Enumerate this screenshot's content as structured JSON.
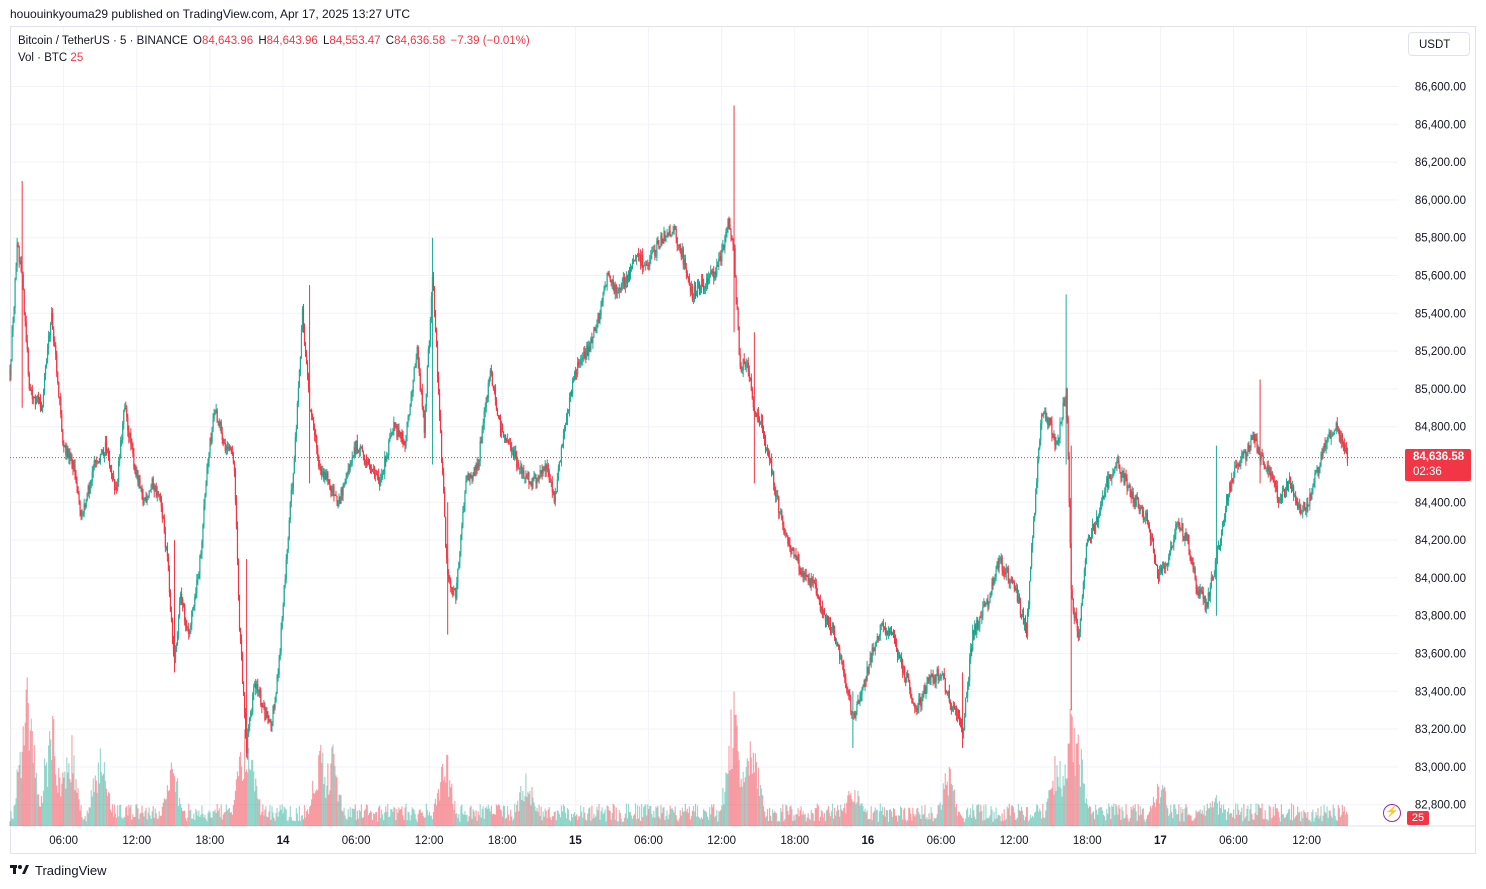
{
  "header": {
    "published_line": "hououinkyouma29 published on TradingView.com, Apr 17, 2025 13:27 UTC"
  },
  "legend": {
    "symbol": "Bitcoin / TetherUS · 5 · BINANCE",
    "open_label": "O",
    "open_value": "84,643.96",
    "high_label": "H",
    "high_value": "84,643.96",
    "low_label": "L",
    "low_value": "84,553.47",
    "close_label": "C",
    "close_value": "84,636.58",
    "change": "−7.39 (−0.01%)",
    "volume_label": "Vol · BTC",
    "volume_value": "25"
  },
  "toolbar": {
    "currency": "USDT"
  },
  "price_tag": {
    "price": "84,636.58",
    "countdown": "02:36"
  },
  "volume_tag": "25",
  "footer": {
    "brand": "TradingView"
  },
  "colors": {
    "up": "#22ab94",
    "down": "#f23645",
    "grid": "#f0f3fa",
    "last_price_line": "#f23645"
  },
  "icons": {
    "logo": "tradingview-logo-icon",
    "alert": "lightning-icon"
  },
  "chart_data": {
    "type": "candlestick",
    "title": "Bitcoin / TetherUS · 5 · BINANCE",
    "xlabel": "",
    "ylabel": "",
    "y_ticks": [
      "86,600.00",
      "86,400.00",
      "86,200.00",
      "86,000.00",
      "85,800.00",
      "85,600.00",
      "85,400.00",
      "85,200.00",
      "85,000.00",
      "84,800.00",
      "84,400.00",
      "84,200.00",
      "84,000.00",
      "83,800.00",
      "83,600.00",
      "83,400.00",
      "83,200.00",
      "83,000.00",
      "82,800.00"
    ],
    "y_tick_values": [
      86600,
      86400,
      86200,
      86000,
      85800,
      85600,
      85400,
      85200,
      85000,
      84800,
      84400,
      84200,
      84000,
      83800,
      83600,
      83400,
      83200,
      83000,
      82800
    ],
    "x_ticks": [
      "06:00",
      "12:00",
      "18:00",
      "14",
      "06:00",
      "12:00",
      "18:00",
      "15",
      "06:00",
      "12:00",
      "18:00",
      "16",
      "06:00",
      "12:00",
      "18:00",
      "17",
      "06:00",
      "12:00"
    ],
    "x_tick_hours": [
      6,
      12,
      18,
      24,
      30,
      36,
      42,
      48,
      54,
      60,
      66,
      72,
      78,
      84,
      90,
      96,
      102,
      108
    ],
    "last_price": 84636.58,
    "ylim": [
      82700,
      86720
    ],
    "xlim_hours": [
      1.6,
      115.5
    ],
    "price_path": [
      [
        1.6,
        85100
      ],
      [
        2.2,
        85750
      ],
      [
        2.6,
        85600
      ],
      [
        3.2,
        85000
      ],
      [
        4.2,
        84900
      ],
      [
        5.0,
        85400
      ],
      [
        6.0,
        84700
      ],
      [
        6.8,
        84600
      ],
      [
        7.5,
        84300
      ],
      [
        8.5,
        84600
      ],
      [
        9.5,
        84700
      ],
      [
        10.3,
        84450
      ],
      [
        11.0,
        84900
      ],
      [
        11.8,
        84600
      ],
      [
        12.5,
        84400
      ],
      [
        13.3,
        84500
      ],
      [
        14.0,
        84400
      ],
      [
        14.5,
        84100
      ],
      [
        15.1,
        83550
      ],
      [
        15.6,
        83900
      ],
      [
        16.3,
        83700
      ],
      [
        17.2,
        84100
      ],
      [
        17.8,
        84600
      ],
      [
        18.4,
        84900
      ],
      [
        19.3,
        84700
      ],
      [
        20.0,
        84600
      ],
      [
        20.4,
        83800
      ],
      [
        21.0,
        83100
      ],
      [
        21.7,
        83450
      ],
      [
        22.4,
        83300
      ],
      [
        23.0,
        83200
      ],
      [
        23.6,
        83500
      ],
      [
        24.4,
        84200
      ],
      [
        25.0,
        84700
      ],
      [
        25.6,
        85400
      ],
      [
        26.2,
        84900
      ],
      [
        27.0,
        84600
      ],
      [
        27.8,
        84500
      ],
      [
        28.6,
        84400
      ],
      [
        29.3,
        84550
      ],
      [
        30.0,
        84700
      ],
      [
        31.0,
        84600
      ],
      [
        32.0,
        84500
      ],
      [
        33.0,
        84800
      ],
      [
        34.0,
        84700
      ],
      [
        35.0,
        85200
      ],
      [
        35.6,
        84800
      ],
      [
        36.3,
        85600
      ],
      [
        36.9,
        84800
      ],
      [
        37.5,
        84000
      ],
      [
        38.2,
        83900
      ],
      [
        39.0,
        84500
      ],
      [
        40.0,
        84600
      ],
      [
        41.0,
        85100
      ],
      [
        41.8,
        84800
      ],
      [
        42.6,
        84700
      ],
      [
        43.6,
        84550
      ],
      [
        44.6,
        84500
      ],
      [
        45.6,
        84600
      ],
      [
        46.3,
        84400
      ],
      [
        47.1,
        84800
      ],
      [
        48.0,
        85100
      ],
      [
        49.0,
        85200
      ],
      [
        49.8,
        85350
      ],
      [
        50.6,
        85600
      ],
      [
        51.5,
        85500
      ],
      [
        52.3,
        85600
      ],
      [
        53.0,
        85700
      ],
      [
        54.0,
        85650
      ],
      [
        55.0,
        85800
      ],
      [
        56.0,
        85850
      ],
      [
        56.8,
        85700
      ],
      [
        57.6,
        85500
      ],
      [
        58.4,
        85550
      ],
      [
        59.3,
        85600
      ],
      [
        60.0,
        85700
      ],
      [
        60.6,
        85900
      ],
      [
        61.0,
        85750
      ],
      [
        61.5,
        85100
      ],
      [
        62.0,
        85150
      ],
      [
        62.7,
        84900
      ],
      [
        63.3,
        84800
      ],
      [
        64.0,
        84600
      ],
      [
        64.6,
        84400
      ],
      [
        65.3,
        84200
      ],
      [
        66.0,
        84100
      ],
      [
        66.8,
        84000
      ],
      [
        67.6,
        83950
      ],
      [
        68.4,
        83800
      ],
      [
        69.2,
        83700
      ],
      [
        70.0,
        83500
      ],
      [
        70.8,
        83250
      ],
      [
        71.6,
        83400
      ],
      [
        72.3,
        83600
      ],
      [
        73.1,
        83750
      ],
      [
        74.0,
        83700
      ],
      [
        75.0,
        83500
      ],
      [
        76.0,
        83300
      ],
      [
        77.0,
        83450
      ],
      [
        78.0,
        83500
      ],
      [
        79.0,
        83300
      ],
      [
        79.8,
        83200
      ],
      [
        80.6,
        83700
      ],
      [
        81.3,
        83800
      ],
      [
        82.0,
        83900
      ],
      [
        82.8,
        84100
      ],
      [
        83.6,
        84000
      ],
      [
        84.3,
        83900
      ],
      [
        85.0,
        83700
      ],
      [
        85.6,
        84300
      ],
      [
        86.3,
        84900
      ],
      [
        87.0,
        84800
      ],
      [
        87.5,
        84700
      ],
      [
        88.3,
        85000
      ],
      [
        88.7,
        83900
      ],
      [
        89.3,
        83700
      ],
      [
        90.0,
        84200
      ],
      [
        90.8,
        84300
      ],
      [
        91.6,
        84500
      ],
      [
        92.4,
        84600
      ],
      [
        93.2,
        84500
      ],
      [
        94.0,
        84400
      ],
      [
        95.0,
        84300
      ],
      [
        95.8,
        84000
      ],
      [
        96.6,
        84100
      ],
      [
        97.4,
        84300
      ],
      [
        98.2,
        84200
      ],
      [
        99.0,
        83950
      ],
      [
        99.8,
        83850
      ],
      [
        100.6,
        84100
      ],
      [
        101.4,
        84400
      ],
      [
        102.2,
        84600
      ],
      [
        103.0,
        84650
      ],
      [
        103.6,
        84750
      ],
      [
        104.2,
        84650
      ],
      [
        105.0,
        84550
      ],
      [
        105.8,
        84400
      ],
      [
        106.6,
        84500
      ],
      [
        107.4,
        84350
      ],
      [
        108.2,
        84400
      ],
      [
        109.0,
        84600
      ],
      [
        109.8,
        84750
      ],
      [
        110.4,
        84800
      ],
      [
        111.0,
        84700
      ],
      [
        111.4,
        84636
      ]
    ],
    "spikes": [
      {
        "hour": 2.6,
        "high": 86100,
        "low": 84900
      },
      {
        "hour": 15.1,
        "high": 84200,
        "low": 83500
      },
      {
        "hour": 21.0,
        "high": 84100,
        "low": 83050
      },
      {
        "hour": 26.2,
        "high": 85550,
        "low": 84500
      },
      {
        "hour": 36.3,
        "high": 85800,
        "low": 84600
      },
      {
        "hour": 37.5,
        "high": 84400,
        "low": 83700
      },
      {
        "hour": 61.0,
        "high": 86500,
        "low": 85300
      },
      {
        "hour": 62.7,
        "high": 85300,
        "low": 84500
      },
      {
        "hour": 70.8,
        "high": 83400,
        "low": 83100
      },
      {
        "hour": 79.8,
        "high": 83500,
        "low": 83100
      },
      {
        "hour": 88.3,
        "high": 85500,
        "low": 84600
      },
      {
        "hour": 88.7,
        "high": 84700,
        "low": 83300
      },
      {
        "hour": 100.6,
        "high": 84700,
        "low": 83800
      },
      {
        "hour": 104.2,
        "high": 85050,
        "low": 84500
      }
    ],
    "volume_max_btc": 180,
    "volume_peaks": [
      {
        "hour": 3.0,
        "value": 180
      },
      {
        "hour": 5.0,
        "value": 125
      },
      {
        "hour": 6.5,
        "value": 110
      },
      {
        "hour": 9.0,
        "value": 90
      },
      {
        "hour": 15.0,
        "value": 75
      },
      {
        "hour": 20.8,
        "value": 100
      },
      {
        "hour": 21.3,
        "value": 90
      },
      {
        "hour": 27.0,
        "value": 95
      },
      {
        "hour": 28.0,
        "value": 90
      },
      {
        "hour": 37.3,
        "value": 85
      },
      {
        "hour": 44.0,
        "value": 70
      },
      {
        "hour": 61.0,
        "value": 150
      },
      {
        "hour": 62.5,
        "value": 110
      },
      {
        "hour": 70.8,
        "value": 55
      },
      {
        "hour": 78.6,
        "value": 65
      },
      {
        "hour": 87.5,
        "value": 85
      },
      {
        "hour": 88.7,
        "value": 125
      },
      {
        "hour": 89.3,
        "value": 95
      },
      {
        "hour": 96.0,
        "value": 55
      },
      {
        "hour": 100.5,
        "value": 35
      }
    ]
  }
}
